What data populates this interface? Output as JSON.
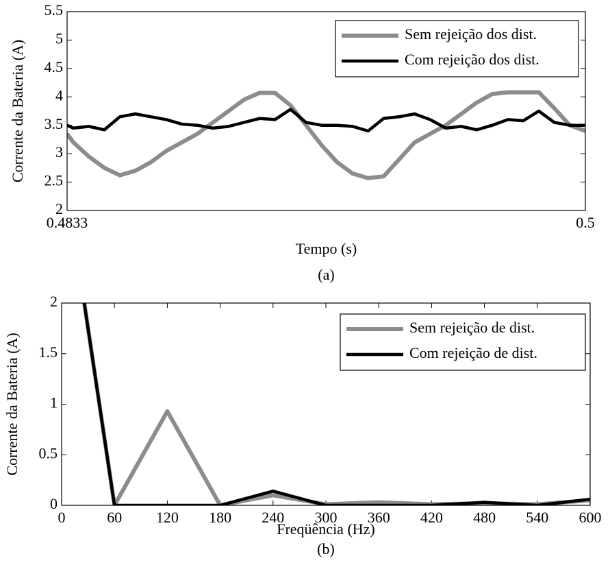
{
  "chart_data": [
    {
      "type": "line",
      "xlabel": "Tempo (s)",
      "ylabel": "Corrente da Bateria (A)",
      "caption": "(a)",
      "x": [
        0.4833,
        0.4835,
        0.484,
        0.4845,
        0.485,
        0.4855,
        0.486,
        0.4865,
        0.487,
        0.4875,
        0.488,
        0.4885,
        0.489,
        0.4895,
        0.49,
        0.4905,
        0.491,
        0.4915,
        0.492,
        0.4925,
        0.493,
        0.4935,
        0.494,
        0.4945,
        0.495,
        0.4955,
        0.496,
        0.4965,
        0.497,
        0.4975,
        0.498,
        0.4985,
        0.499,
        0.4995,
        0.5
      ],
      "series": [
        {
          "name": "Sem rejeição dos dist.",
          "color": "#8c8c8c",
          "values": [
            3.35,
            3.2,
            2.95,
            2.75,
            2.62,
            2.7,
            2.85,
            3.05,
            3.2,
            3.35,
            3.55,
            3.75,
            3.95,
            4.07,
            4.07,
            3.85,
            3.5,
            3.15,
            2.85,
            2.65,
            2.57,
            2.6,
            2.9,
            3.2,
            3.35,
            3.5,
            3.7,
            3.9,
            4.05,
            4.08,
            4.08,
            4.08,
            3.8,
            3.5,
            3.4
          ]
        },
        {
          "name": "Com rejeição dos dist.",
          "color": "#000000",
          "values": [
            3.5,
            3.45,
            3.48,
            3.42,
            3.65,
            3.7,
            3.65,
            3.6,
            3.52,
            3.5,
            3.45,
            3.48,
            3.55,
            3.62,
            3.6,
            3.78,
            3.55,
            3.5,
            3.5,
            3.48,
            3.4,
            3.62,
            3.65,
            3.7,
            3.6,
            3.45,
            3.48,
            3.42,
            3.5,
            3.6,
            3.58,
            3.75,
            3.55,
            3.5,
            3.5
          ]
        }
      ],
      "xlim": [
        0.4833,
        0.5
      ],
      "xticks": [
        0.4833,
        0.5
      ],
      "ylim": [
        2,
        5.5
      ],
      "yticks": [
        2,
        2.5,
        3,
        3.5,
        4,
        4.5,
        5,
        5.5
      ],
      "legend": "upper right",
      "grid": false
    },
    {
      "type": "line",
      "xlabel": "Freqüência (Hz)",
      "ylabel": "Corrente da Bateria (A)",
      "caption": "(b)",
      "x": [
        0,
        60,
        120,
        180,
        240,
        300,
        360,
        420,
        480,
        540,
        600
      ],
      "series": [
        {
          "name": "Sem rejeição de dist.",
          "color": "#8c8c8c",
          "values": [
            3.5,
            0,
            0.93,
            0,
            0.1,
            0.01,
            0.03,
            0.01,
            0.02,
            0.01,
            0.05
          ]
        },
        {
          "name": "Com rejeição de dist.",
          "color": "#000000",
          "values": [
            3.5,
            0,
            0,
            0,
            0.14,
            0,
            0,
            0,
            0.03,
            0,
            0.06
          ]
        }
      ],
      "xlim": [
        0,
        600
      ],
      "xticks": [
        0,
        60,
        120,
        180,
        240,
        300,
        360,
        420,
        480,
        540,
        600
      ],
      "ylim": [
        0,
        2
      ],
      "yticks": [
        0,
        0.5,
        1,
        1.5,
        2
      ],
      "legend": "upper right",
      "grid": false
    }
  ]
}
